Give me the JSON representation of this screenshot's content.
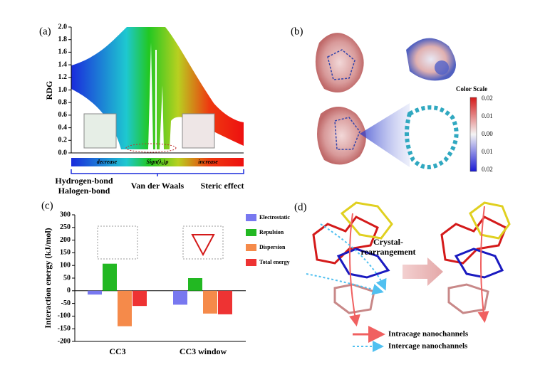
{
  "chart_data": [
    {
      "type": "scatter",
      "panel": "(a)",
      "ylabel": "RDG",
      "ylim": [
        0,
        2.0
      ],
      "yticks": [
        {
          "value": 0,
          "label": "0.0"
        },
        0.2,
        0.4,
        0.6,
        0.8,
        {
          "value": 1,
          "label": "1.0"
        },
        1.2,
        1.4,
        1.6,
        1.8,
        {
          "value": 2,
          "label": "2.0"
        }
      ],
      "xlabel": "Sign(λ₂)ρ",
      "scale_left": "decrease",
      "scale_right": "increase",
      "regions": [
        "Hydrogen-bond\nHalogen-bond",
        "Van der Waals",
        "Steric effect"
      ]
    },
    {
      "type": "bar",
      "panel": "(c)",
      "ylabel": "Interaction energy (kJ/mol)",
      "categories": [
        "CC3",
        "CC3 window"
      ],
      "series": [
        {
          "name": "Electrostatic",
          "color": "#7878f0",
          "values": [
            -15,
            -55
          ]
        },
        {
          "name": "Repulsion",
          "color": "#22b822",
          "values": [
            107,
            50
          ]
        },
        {
          "name": "Dispersion",
          "color": "#f58a4a",
          "values": [
            -140,
            -90
          ]
        },
        {
          "name": "Total energy",
          "color": "#ee3333",
          "values": [
            -60,
            -93
          ]
        }
      ],
      "ylim": [
        -200,
        300
      ],
      "yticks": [
        -200,
        -150,
        -100,
        -50,
        0,
        50,
        100,
        150,
        200,
        250,
        300
      ],
      "legend": "right"
    }
  ],
  "panel_b": {
    "label": "(b)",
    "color_scale_title": "Color Scale",
    "color_scale_labels": [
      "0.02",
      "0.01",
      "0.00",
      "0.01",
      "0.02"
    ]
  },
  "panel_d": {
    "label": "(d)",
    "process": "Crystal-\nrearrangement",
    "legend": [
      "Intracage nanochannels",
      "Intercage nanochannels"
    ]
  }
}
